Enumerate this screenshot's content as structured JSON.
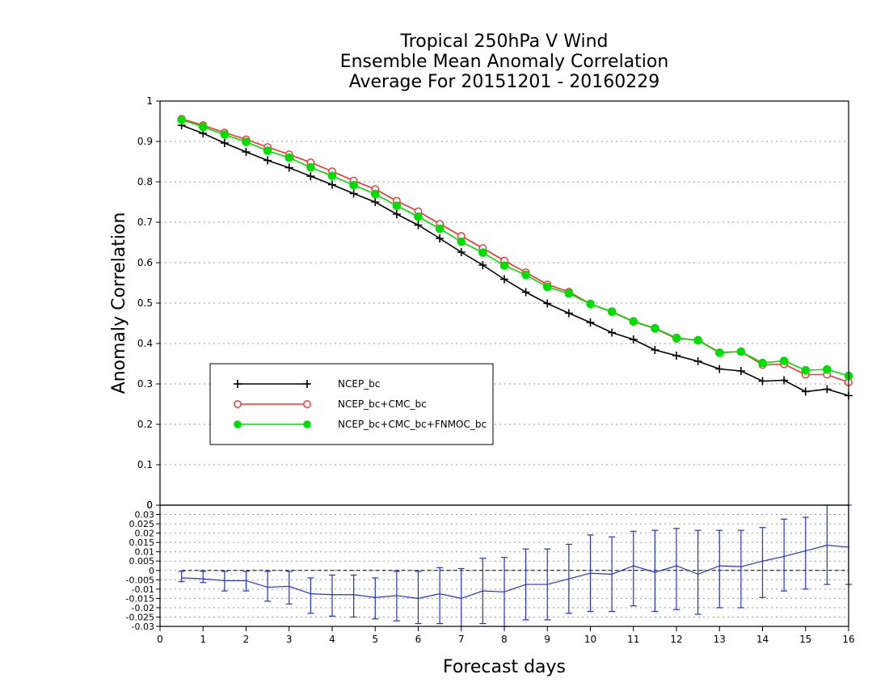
{
  "chart_data": [
    {
      "type": "line",
      "title_lines": [
        "Tropical 250hPa V Wind",
        "Ensemble Mean Anomaly Correlation",
        "Average For 20151201 - 20160229"
      ],
      "ylabel": "Anomaly Correlation",
      "xlim": [
        0,
        16
      ],
      "ylim": [
        0,
        1
      ],
      "yticks": [
        "0",
        "0.1",
        "0.2",
        "0.3",
        "0.4",
        "0.5",
        "0.6",
        "0.7",
        "0.8",
        "0.9",
        "1"
      ],
      "grid": true,
      "legend_position": "middle-left",
      "x": [
        0.5,
        1,
        1.5,
        2,
        2.5,
        3,
        3.5,
        4,
        4.5,
        5,
        5.5,
        6,
        6.5,
        7,
        7.5,
        8,
        8.5,
        9,
        9.5,
        10,
        10.5,
        11,
        11.5,
        12,
        12.5,
        13,
        13.5,
        14,
        14.5,
        15,
        15.5,
        16
      ],
      "series": [
        {
          "name": "NCEP_bc",
          "color": "#000000",
          "marker": "plus",
          "values": [
            0.94,
            0.92,
            0.896,
            0.874,
            0.853,
            0.835,
            0.814,
            0.793,
            0.771,
            0.75,
            0.72,
            0.693,
            0.66,
            0.626,
            0.594,
            0.559,
            0.527,
            0.499,
            0.475,
            0.452,
            0.427,
            0.41,
            0.384,
            0.37,
            0.356,
            0.337,
            0.332,
            0.307,
            0.309,
            0.281,
            0.287,
            0.271
          ]
        },
        {
          "name": "NCEP_bc+CMC_bc",
          "color": "#ee3333",
          "marker": "open-circle",
          "values": [
            0.956,
            0.94,
            0.922,
            0.905,
            0.886,
            0.868,
            0.848,
            0.826,
            0.803,
            0.782,
            0.753,
            0.727,
            0.696,
            0.666,
            0.636,
            0.605,
            0.576,
            0.546,
            0.528,
            0.498,
            0.478,
            0.454,
            0.437,
            0.412,
            0.409,
            0.378,
            0.38,
            0.347,
            0.349,
            0.323,
            0.323,
            0.304
          ]
        },
        {
          "name": "NCEP_bc+CMC_bc+FNMOC_bc",
          "color": "#00dd00",
          "marker": "filled-circle",
          "values": [
            0.954,
            0.936,
            0.917,
            0.899,
            0.877,
            0.86,
            0.836,
            0.815,
            0.792,
            0.77,
            0.741,
            0.714,
            0.684,
            0.652,
            0.625,
            0.593,
            0.57,
            0.54,
            0.524,
            0.498,
            0.479,
            0.455,
            0.438,
            0.414,
            0.408,
            0.377,
            0.38,
            0.352,
            0.357,
            0.334,
            0.336,
            0.32
          ]
        }
      ]
    },
    {
      "type": "line",
      "xlabel": "Forecast days",
      "xlim": [
        0,
        16
      ],
      "xticks": [
        "0",
        "1",
        "2",
        "3",
        "4",
        "5",
        "6",
        "7",
        "8",
        "9",
        "10",
        "11",
        "12",
        "13",
        "14",
        "15",
        "16"
      ],
      "ylim": [
        -0.03,
        0.035
      ],
      "yticks": [
        "-0.03",
        "-0.025",
        "-0.02",
        "-0.015",
        "-0.01",
        "-0.005",
        "0",
        "0.005",
        "0.01",
        "0.015",
        "0.02",
        "0.025",
        "0.03"
      ],
      "top_tick_label": "0",
      "grid": true,
      "reference_line": 0,
      "x": [
        0.5,
        1,
        1.5,
        2,
        2.5,
        3,
        3.5,
        4,
        4.5,
        5,
        5.5,
        6,
        6.5,
        7,
        7.5,
        8,
        8.5,
        9,
        9.5,
        10,
        10.5,
        11,
        11.5,
        12,
        12.5,
        13,
        13.5,
        14,
        14.5,
        15,
        15.5,
        16
      ],
      "series": [
        {
          "color": "#2233cc",
          "values": [
            -0.004,
            -0.0045,
            -0.0055,
            -0.0055,
            -0.009,
            -0.0085,
            -0.0125,
            -0.013,
            -0.013,
            -0.0145,
            -0.0135,
            -0.015,
            -0.0125,
            -0.015,
            -0.011,
            -0.0115,
            -0.0075,
            -0.0075,
            -0.0045,
            -0.0015,
            -0.002,
            0.0025,
            -0.001,
            0.0025,
            -0.002,
            0.0025,
            0.002,
            0.005,
            0.0075,
            0.0105,
            0.0135,
            0.0125
          ],
          "error_low": [
            -0.006,
            -0.0065,
            -0.011,
            -0.011,
            -0.0165,
            -0.018,
            -0.023,
            -0.0245,
            -0.025,
            -0.026,
            -0.027,
            -0.0285,
            -0.0285,
            -0.0305,
            -0.0285,
            -0.03,
            -0.0265,
            -0.0265,
            -0.023,
            -0.022,
            -0.022,
            -0.019,
            -0.022,
            -0.021,
            -0.0235,
            -0.02,
            -0.02,
            -0.0145,
            -0.011,
            -0.01,
            -0.0075,
            -0.0075
          ],
          "error_high": [
            -0.0005,
            -0.0005,
            -0.0005,
            -0.0005,
            -0.0005,
            -0.0005,
            -0.004,
            -0.0025,
            -0.0025,
            -0.004,
            -0.0005,
            -0.0005,
            0.0015,
            0.001,
            0.0065,
            0.007,
            0.0115,
            0.0115,
            0.014,
            0.019,
            0.018,
            0.021,
            0.0215,
            0.0225,
            0.0215,
            0.0215,
            0.0215,
            0.023,
            0.0275,
            0.0285,
            0.035,
            0.035
          ]
        }
      ]
    }
  ]
}
